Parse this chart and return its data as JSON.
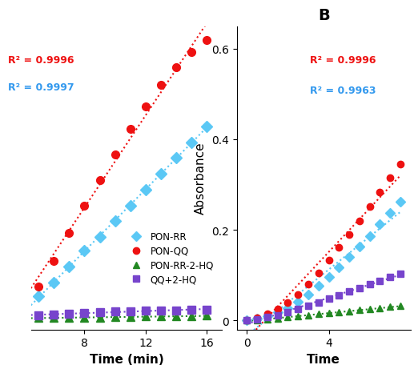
{
  "panel_A": {
    "xlabel": "Time (min)",
    "xlim": [
      4.5,
      17
    ],
    "ylim": [
      -0.02,
      0.75
    ],
    "xticks": [
      8,
      12,
      16
    ],
    "r2_red": "R² = 0.9996",
    "r2_blue": "R² = 0.9997",
    "r2_red_color": "#ee1111",
    "r2_blue_color": "#3399ee",
    "series": {
      "PON-RR": {
        "color": "#5bc8f5",
        "marker": "D",
        "x": [
          5,
          6,
          7,
          8,
          9,
          10,
          11,
          12,
          13,
          14,
          15,
          16
        ],
        "y": [
          0.065,
          0.1,
          0.14,
          0.18,
          0.215,
          0.255,
          0.295,
          0.335,
          0.375,
          0.415,
          0.455,
          0.495
        ]
      },
      "PON-QQ": {
        "color": "#ee1111",
        "marker": "o",
        "x": [
          5,
          6,
          7,
          8,
          9,
          10,
          11,
          12,
          13,
          14,
          15,
          16
        ],
        "y": [
          0.09,
          0.155,
          0.225,
          0.295,
          0.36,
          0.425,
          0.49,
          0.545,
          0.6,
          0.645,
          0.685,
          0.715
        ]
      },
      "PON-RR-2-HQ": {
        "color": "#228822",
        "marker": "^",
        "x": [
          5,
          6,
          7,
          8,
          9,
          10,
          11,
          12,
          13,
          14,
          15,
          16
        ],
        "y": [
          0.01,
          0.01,
          0.01,
          0.01,
          0.01,
          0.012,
          0.012,
          0.013,
          0.013,
          0.014,
          0.014,
          0.015
        ]
      },
      "QQ+2-HQ": {
        "color": "#7744cc",
        "marker": "s",
        "x": [
          5,
          6,
          7,
          8,
          9,
          10,
          11,
          12,
          13,
          14,
          15,
          16
        ],
        "y": [
          0.016,
          0.018,
          0.02,
          0.022,
          0.024,
          0.026,
          0.027,
          0.028,
          0.028,
          0.029,
          0.03,
          0.031
        ]
      }
    },
    "legend_labels": [
      "PON-RR",
      "PON-QQ",
      "PON-RR-2-HQ",
      "QQ+2-HQ"
    ],
    "legend_markers": [
      "D",
      "o",
      "^",
      "s"
    ],
    "legend_colors": [
      "#5bc8f5",
      "#ee1111",
      "#228822",
      "#7744cc"
    ]
  },
  "panel_B": {
    "title": "B",
    "xlabel": "Time",
    "ylabel": "Absorbance",
    "xlim": [
      -0.5,
      8
    ],
    "ylim": [
      -0.02,
      0.65
    ],
    "xticks": [
      0,
      4
    ],
    "yticks": [
      0,
      0.2,
      0.4,
      0.6
    ],
    "r2_red": "R² = 0.9996",
    "r2_blue": "R² = 0.9963",
    "r2_red_color": "#ee1111",
    "r2_blue_color": "#3399ee",
    "series": {
      "PON-RR": {
        "color": "#5bc8f5",
        "marker": "D",
        "x": [
          0,
          0.5,
          1,
          1.5,
          2,
          2.5,
          3,
          3.5,
          4,
          4.5,
          5,
          5.5,
          6,
          6.5,
          7,
          7.5
        ],
        "y": [
          0.0,
          0.004,
          0.01,
          0.018,
          0.028,
          0.042,
          0.058,
          0.076,
          0.097,
          0.118,
          0.14,
          0.163,
          0.187,
          0.212,
          0.237,
          0.263
        ]
      },
      "PON-QQ": {
        "color": "#ee1111",
        "marker": "o",
        "x": [
          0,
          0.5,
          1,
          1.5,
          2,
          2.5,
          3,
          3.5,
          4,
          4.5,
          5,
          5.5,
          6,
          6.5,
          7,
          7.5
        ],
        "y": [
          0.0,
          0.006,
          0.014,
          0.025,
          0.04,
          0.058,
          0.08,
          0.105,
          0.133,
          0.161,
          0.19,
          0.22,
          0.252,
          0.283,
          0.315,
          0.345
        ]
      },
      "PON-RR-2-HQ": {
        "color": "#228822",
        "marker": "^",
        "x": [
          0,
          0.5,
          1,
          1.5,
          2,
          2.5,
          3,
          3.5,
          4,
          4.5,
          5,
          5.5,
          6,
          6.5,
          7,
          7.5
        ],
        "y": [
          0.0,
          0.001,
          0.003,
          0.005,
          0.007,
          0.009,
          0.012,
          0.014,
          0.016,
          0.018,
          0.021,
          0.023,
          0.025,
          0.027,
          0.03,
          0.032
        ]
      },
      "QQ+2-HQ": {
        "color": "#7744cc",
        "marker": "s",
        "x": [
          0,
          0.5,
          1,
          1.5,
          2,
          2.5,
          3,
          3.5,
          4,
          4.5,
          5,
          5.5,
          6,
          6.5,
          7,
          7.5
        ],
        "y": [
          0.0,
          0.003,
          0.007,
          0.012,
          0.018,
          0.025,
          0.032,
          0.04,
          0.048,
          0.056,
          0.064,
          0.072,
          0.08,
          0.088,
          0.096,
          0.104
        ]
      }
    }
  }
}
